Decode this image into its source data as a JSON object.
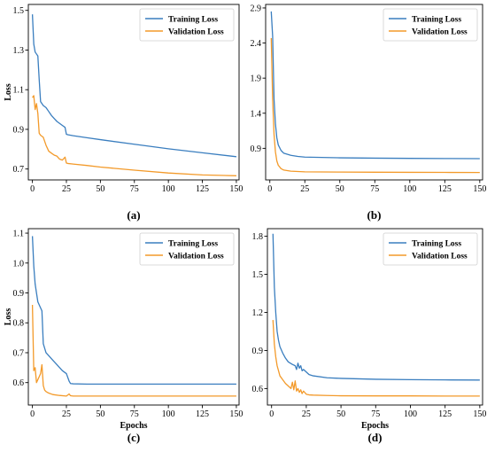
{
  "colors": {
    "training": "#3a7ebf",
    "validation": "#f39a2a",
    "axis": "#000000"
  },
  "chart_data": [
    {
      "type": "line",
      "panel_label": "(a)",
      "xlabel": "",
      "ylabel": "Loss",
      "xlim": [
        -3,
        152
      ],
      "ylim": [
        0.645,
        1.53
      ],
      "xticks": [
        0,
        25,
        50,
        75,
        100,
        125,
        150
      ],
      "yticks": [
        0.7,
        0.9,
        1.1,
        1.3,
        1.5
      ],
      "legend": "top-right",
      "grid": false,
      "series": [
        {
          "name": "Training Loss",
          "x": [
            0,
            1,
            2,
            3,
            4,
            5,
            6,
            8,
            10,
            12,
            14,
            16,
            18,
            20,
            22,
            24,
            25,
            26,
            30,
            40,
            50,
            75,
            100,
            125,
            150
          ],
          "y": [
            1.48,
            1.33,
            1.29,
            1.28,
            1.27,
            1.15,
            1.04,
            1.02,
            1.01,
            0.99,
            0.97,
            0.955,
            0.94,
            0.93,
            0.92,
            0.91,
            0.875,
            0.873,
            0.868,
            0.858,
            0.848,
            0.825,
            0.802,
            0.782,
            0.762
          ]
        },
        {
          "name": "Validation Loss",
          "x": [
            0,
            1,
            2,
            3,
            4,
            5,
            6,
            8,
            10,
            12,
            14,
            16,
            18,
            20,
            22,
            24,
            25,
            26,
            30,
            40,
            50,
            75,
            100,
            125,
            150
          ],
          "y": [
            1.06,
            1.07,
            1.0,
            1.03,
            0.98,
            0.88,
            0.87,
            0.86,
            0.82,
            0.79,
            0.78,
            0.77,
            0.765,
            0.75,
            0.745,
            0.76,
            0.73,
            0.728,
            0.725,
            0.718,
            0.71,
            0.694,
            0.68,
            0.67,
            0.666
          ]
        }
      ]
    },
    {
      "type": "line",
      "panel_label": "(b)",
      "xlabel": "",
      "ylabel": "",
      "xlim": [
        -3,
        152
      ],
      "ylim": [
        0.45,
        2.95
      ],
      "xticks": [
        0,
        25,
        50,
        75,
        100,
        125,
        150
      ],
      "yticks": [
        0.9,
        1.4,
        1.9,
        2.4,
        2.9
      ],
      "legend": "top-right",
      "grid": false,
      "series": [
        {
          "name": "Training Loss",
          "x": [
            1,
            2,
            3,
            4,
            5,
            6,
            8,
            10,
            15,
            20,
            25,
            50,
            75,
            100,
            125,
            150
          ],
          "y": [
            2.85,
            2.5,
            1.6,
            1.25,
            1.05,
            0.95,
            0.87,
            0.83,
            0.8,
            0.785,
            0.775,
            0.765,
            0.76,
            0.757,
            0.755,
            0.753
          ]
        },
        {
          "name": "Validation Loss",
          "x": [
            1,
            2,
            3,
            4,
            5,
            6,
            8,
            10,
            15,
            20,
            25,
            50,
            75,
            100,
            125,
            150
          ],
          "y": [
            2.47,
            1.6,
            1.1,
            0.85,
            0.72,
            0.66,
            0.61,
            0.59,
            0.575,
            0.57,
            0.565,
            0.562,
            0.56,
            0.558,
            0.557,
            0.556
          ]
        }
      ]
    },
    {
      "type": "line",
      "panel_label": "(c)",
      "xlabel": "Epochs",
      "ylabel": "Loss",
      "xlim": [
        -3,
        152
      ],
      "ylim": [
        0.525,
        1.115
      ],
      "xticks": [
        0,
        25,
        50,
        75,
        100,
        125,
        150
      ],
      "yticks": [
        0.6,
        0.7,
        0.8,
        0.9,
        1.0,
        1.1
      ],
      "legend": "top-right",
      "grid": false,
      "series": [
        {
          "name": "Training Loss",
          "x": [
            0,
            1,
            2,
            3,
            4,
            5,
            6,
            7,
            8,
            10,
            12,
            15,
            18,
            20,
            22,
            25,
            27,
            28,
            30,
            40,
            50,
            100,
            150
          ],
          "y": [
            1.09,
            0.99,
            0.93,
            0.9,
            0.87,
            0.86,
            0.85,
            0.84,
            0.73,
            0.7,
            0.69,
            0.675,
            0.66,
            0.65,
            0.64,
            0.63,
            0.605,
            0.597,
            0.596,
            0.595,
            0.595,
            0.595,
            0.595
          ]
        },
        {
          "name": "Validation Loss",
          "x": [
            0,
            1,
            2,
            3,
            4,
            5,
            6,
            7,
            8,
            9,
            10,
            12,
            15,
            20,
            25,
            27,
            28,
            30,
            40,
            50,
            100,
            150
          ],
          "y": [
            0.86,
            0.64,
            0.65,
            0.6,
            0.61,
            0.62,
            0.63,
            0.66,
            0.59,
            0.575,
            0.57,
            0.565,
            0.56,
            0.557,
            0.555,
            0.562,
            0.556,
            0.555,
            0.555,
            0.555,
            0.555,
            0.555
          ]
        }
      ]
    },
    {
      "type": "line",
      "panel_label": "(d)",
      "xlabel": "Epochs",
      "ylabel": "",
      "xlim": [
        -3,
        152
      ],
      "ylim": [
        0.47,
        1.86
      ],
      "xticks": [
        0,
        25,
        50,
        75,
        100,
        125,
        150
      ],
      "yticks": [
        0.6,
        0.9,
        1.2,
        1.5,
        1.8
      ],
      "legend": "top-right",
      "grid": false,
      "series": [
        {
          "name": "Training Loss",
          "x": [
            1,
            2,
            3,
            4,
            5,
            6,
            8,
            10,
            12,
            15,
            17,
            18,
            19,
            20,
            21,
            22,
            23,
            25,
            27,
            30,
            40,
            50,
            75,
            100,
            125,
            150
          ],
          "y": [
            1.82,
            1.4,
            1.2,
            1.05,
            0.98,
            0.93,
            0.88,
            0.84,
            0.81,
            0.79,
            0.78,
            0.75,
            0.8,
            0.76,
            0.78,
            0.74,
            0.75,
            0.73,
            0.71,
            0.7,
            0.685,
            0.68,
            0.673,
            0.67,
            0.668,
            0.667
          ]
        },
        {
          "name": "Validation Loss",
          "x": [
            1,
            2,
            3,
            4,
            5,
            6,
            8,
            10,
            12,
            14,
            15,
            16,
            17,
            18,
            19,
            20,
            21,
            22,
            23,
            25,
            27,
            30,
            40,
            50,
            75,
            100,
            125,
            150
          ],
          "y": [
            1.14,
            0.95,
            0.85,
            0.78,
            0.74,
            0.7,
            0.67,
            0.64,
            0.62,
            0.6,
            0.65,
            0.59,
            0.66,
            0.58,
            0.6,
            0.57,
            0.59,
            0.56,
            0.58,
            0.555,
            0.55,
            0.548,
            0.545,
            0.543,
            0.542,
            0.542,
            0.541,
            0.541
          ]
        }
      ]
    }
  ]
}
